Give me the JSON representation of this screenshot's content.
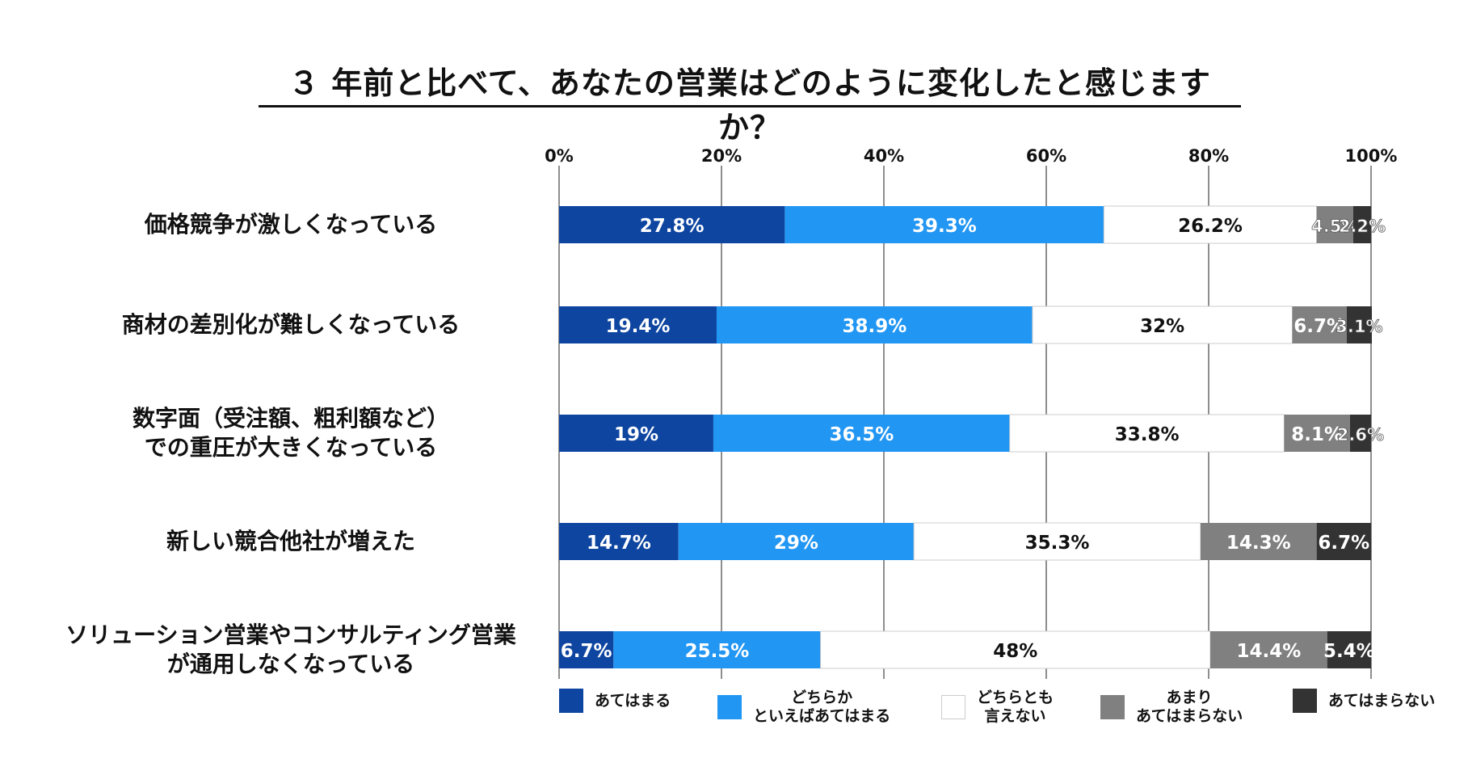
{
  "title": "３ 年前と比べて、あなたの営業はどのように変化したと感じますか？",
  "chart_data": {
    "type": "bar",
    "orientation": "horizontal",
    "stacked": true,
    "percent_stacked": true,
    "title": "３ 年前と比べて、あなたの営業はどのように変化したと感じますか？",
    "xlim": [
      0,
      100
    ],
    "x_ticks": [
      "0%",
      "20%",
      "40%",
      "60%",
      "80%",
      "100%"
    ],
    "grid": true,
    "legend_position": "bottom",
    "categories": [
      "価格競争が激しくなっている",
      "商材の差別化が難しくなっている",
      "数字面（受注額、粗利額など）\nでの重圧が大きくなっている",
      "新しい競合他社が増えた",
      "ソリューション営業やコンサルティング営業\nが通用しなくなっている"
    ],
    "series": [
      {
        "name": "あてはまる",
        "color": "#0E45A0",
        "values": [
          27.8,
          19.4,
          19,
          14.7,
          6.7
        ],
        "labels": [
          "27.8%",
          "19.4%",
          "19%",
          "14.7%",
          "6.7%"
        ],
        "label_color": "#ffffff"
      },
      {
        "name": "どちらか\nといえばあてはまる",
        "color": "#2196F3",
        "values": [
          39.3,
          38.9,
          36.5,
          29,
          25.5
        ],
        "labels": [
          "39.3%",
          "38.9%",
          "36.5%",
          "29%",
          "25.5%"
        ],
        "label_color": "#ffffff"
      },
      {
        "name": "どちらとも\n言えない",
        "color": "#ffffff",
        "values": [
          26.2,
          32,
          33.8,
          35.3,
          48
        ],
        "labels": [
          "26.2%",
          "32%",
          "33.8%",
          "35.3%",
          "48%"
        ],
        "label_color": "#111111"
      },
      {
        "name": "あまり\nあてはまらない",
        "color": "#808080",
        "values": [
          4.5,
          6.7,
          8.1,
          14.3,
          14.4
        ],
        "labels": [
          "4.5%",
          "6.7%",
          "8.1%",
          "14.3%",
          "14.4%"
        ],
        "label_color": "#ffffff"
      },
      {
        "name": "あてはまらない",
        "color": "#333333",
        "values": [
          2.2,
          3.1,
          2.6,
          6.7,
          5.4
        ],
        "labels": [
          "2.2%",
          "3.1%",
          "2.6%",
          "6.7%",
          "5.4%"
        ],
        "label_color": "#ffffff"
      }
    ]
  }
}
